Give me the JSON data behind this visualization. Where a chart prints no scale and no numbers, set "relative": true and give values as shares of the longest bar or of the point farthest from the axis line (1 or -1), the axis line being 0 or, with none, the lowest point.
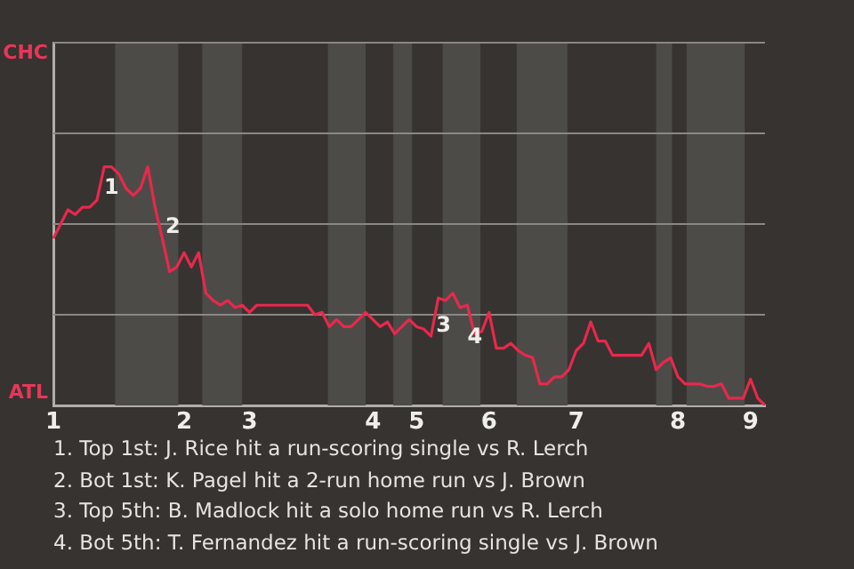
{
  "chart_data": {
    "type": "line",
    "relative": true,
    "categories": [
      "1",
      null,
      null,
      null,
      null,
      null,
      null,
      null,
      null,
      null,
      null,
      null,
      null,
      null,
      null,
      null,
      null,
      null,
      "2",
      null,
      null,
      null,
      null,
      null,
      null,
      null,
      null,
      "3",
      null,
      null,
      null,
      null,
      null,
      null,
      null,
      null,
      null,
      null,
      null,
      null,
      null,
      null,
      null,
      null,
      "4",
      null,
      null,
      null,
      null,
      null,
      "5",
      null,
      null,
      null,
      null,
      null,
      null,
      null,
      null,
      null,
      "6",
      null,
      null,
      null,
      null,
      null,
      null,
      null,
      null,
      null,
      null,
      null,
      "7",
      null,
      null,
      null,
      null,
      null,
      null,
      null,
      null,
      null,
      null,
      null,
      null,
      null,
      "8",
      null,
      null,
      null,
      null,
      null,
      null,
      null,
      null,
      null,
      "9",
      null,
      null
    ],
    "legend": false,
    "marker": "none",
    "line_style": "solid",
    "ref_lines": [
      {
        "axis": "y",
        "value": 0.38,
        "color": "#8a8885"
      },
      {
        "axis": "y",
        "value": 0.76,
        "color": "#8a8885"
      },
      {
        "axis": "y",
        "value": 1.14,
        "color": "#8a8885"
      },
      {
        "axis": "y",
        "value": 1.52,
        "color": "#8a8885"
      }
    ],
    "series": [
      {
        "color": "#e8284d",
        "values": [
          0.7,
          0.76,
          0.82,
          0.8,
          0.83,
          0.83,
          0.86,
          1,
          1,
          0.97,
          0.91,
          0.88,
          0.91,
          1,
          0.83,
          0.7,
          0.56,
          0.58,
          0.64,
          0.58,
          0.64,
          0.47,
          0.44,
          0.42,
          0.44,
          0.41,
          0.42,
          0.39,
          0.42,
          0.42,
          0.42,
          0.42,
          0.42,
          0.42,
          0.42,
          0.42,
          0.38,
          0.39,
          0.33,
          0.36,
          0.33,
          0.33,
          0.36,
          0.39,
          0.36,
          0.33,
          0.35,
          0.3,
          0.33,
          0.36,
          0.33,
          0.32,
          0.29,
          0.45,
          0.44,
          0.47,
          0.41,
          0.42,
          0.3,
          0.31,
          0.39,
          0.24,
          0.24,
          0.26,
          0.23,
          0.21,
          0.2,
          0.09,
          0.09,
          0.12,
          0.12,
          0.15,
          0.23,
          0.26,
          0.35,
          0.27,
          0.27,
          0.21,
          0.21,
          0.21,
          0.21,
          0.21,
          0.26,
          0.15,
          0.18,
          0.2,
          0.12,
          0.09,
          0.09,
          0.09,
          0.08,
          0.08,
          0.09,
          0.03,
          0.03,
          0.03,
          0.11,
          0.03,
          0
        ]
      }
    ],
    "annotations": [
      "CHC",
      "ATL",
      "1",
      "2",
      "3",
      "4",
      "1. Top 1st: J. Rice hit a run-scoring single vs R. Lerch",
      "2. Bot 1st: K. Pagel hit a 2-run home run vs J. Brown",
      "3. Top 5th: B. Madlock hit a solo home run vs R. Lerch",
      "4. Bot 5th: T. Fernandez hit a run-scoring single vs J. Brown"
    ]
  }
}
